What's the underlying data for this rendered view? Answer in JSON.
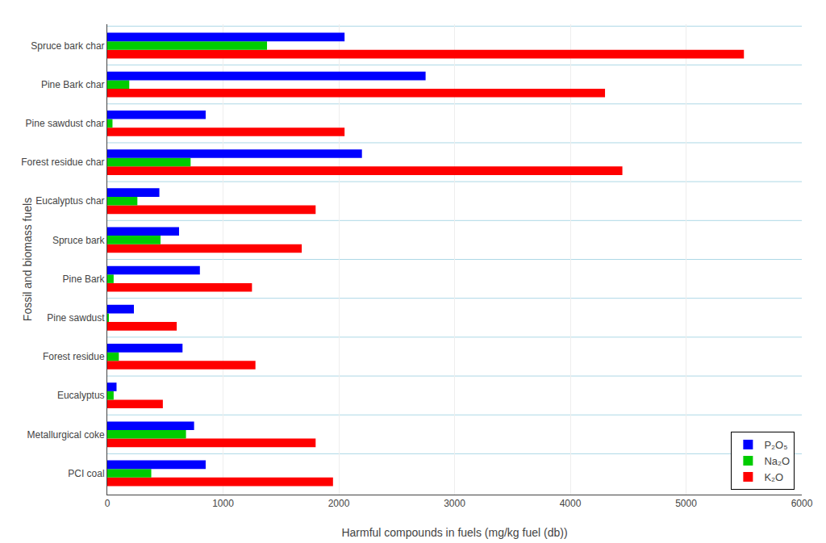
{
  "chart_data": {
    "type": "bar",
    "orientation": "horizontal",
    "categories": [
      "PCI coal",
      "Metallurgical coke",
      "Eucalyptus",
      "Forest residue",
      "Pine sawdust",
      "Pine Bark",
      "Spruce bark",
      "Eucalyptus char",
      "Forest residue char",
      "Pine sawdust char",
      "Pine Bark char",
      "Spruce bark char"
    ],
    "series": [
      {
        "name": "P₂O₅",
        "color": "#0000ff",
        "values": [
          850,
          750,
          80,
          650,
          230,
          800,
          620,
          450,
          2200,
          850,
          2750,
          2050
        ]
      },
      {
        "name": "Na₂O",
        "color": "#00cc00",
        "values": [
          380,
          680,
          55,
          100,
          10,
          55,
          460,
          260,
          720,
          45,
          190,
          1380
        ]
      },
      {
        "name": "K₂O",
        "color": "#ff0000",
        "values": [
          1950,
          1800,
          480,
          1280,
          600,
          1250,
          1680,
          1800,
          4450,
          2050,
          4300,
          5500
        ]
      }
    ],
    "xlabel": "Harmful compounds in fuels (mg/kg fuel (db))",
    "ylabel": "Fossil and biomass fuels",
    "xlim": [
      0,
      6000
    ],
    "xticks": [
      0,
      1000,
      2000,
      3000,
      4000,
      5000,
      6000
    ],
    "grid": true,
    "legend": "lower right"
  }
}
